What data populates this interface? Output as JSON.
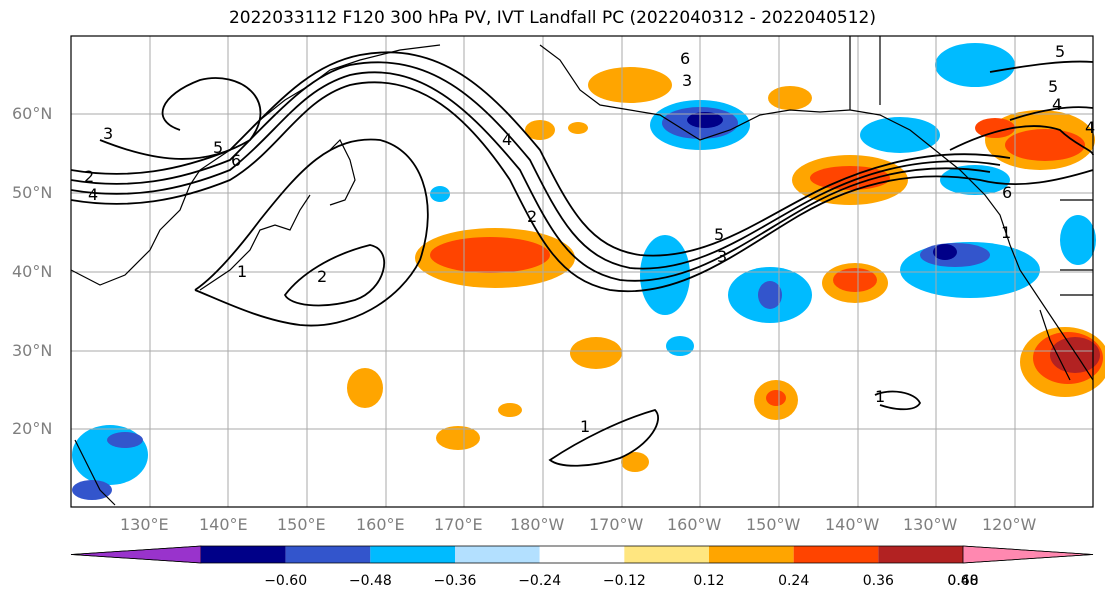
{
  "title": "2022033112 F120 300 hPa PV, IVT Landfall PC (2022040312 - 2022040512)",
  "latitude_labels": [
    "60°N",
    "50°N",
    "40°N",
    "30°N",
    "20°N"
  ],
  "longitude_labels": [
    "130°E",
    "140°E",
    "150°E",
    "160°E",
    "170°E",
    "180°W",
    "170°W",
    "160°W",
    "150°W",
    "140°W",
    "130°W",
    "120°W"
  ],
  "contour_labels": [
    "3",
    "5",
    "4",
    "2",
    "1",
    "2",
    "4",
    "2",
    "5",
    "3",
    "1",
    "6",
    "3",
    "5",
    "4",
    "6",
    "5",
    "4",
    "1",
    "1",
    "6"
  ],
  "colorbar": {
    "tick_labels": [
      "−0.60",
      "−0.48",
      "−0.36",
      "−0.24",
      "−0.12",
      "0.12",
      "0.24",
      "0.36",
      "0.48",
      "0.60"
    ],
    "colors": [
      "#9933cc",
      "#000088",
      "#3355cc",
      "#00bbff",
      "#b3e0ff",
      "#ffffff",
      "#ffe680",
      "#ffa500",
      "#ff4400",
      "#b22222",
      "#ff88b0"
    ]
  }
}
